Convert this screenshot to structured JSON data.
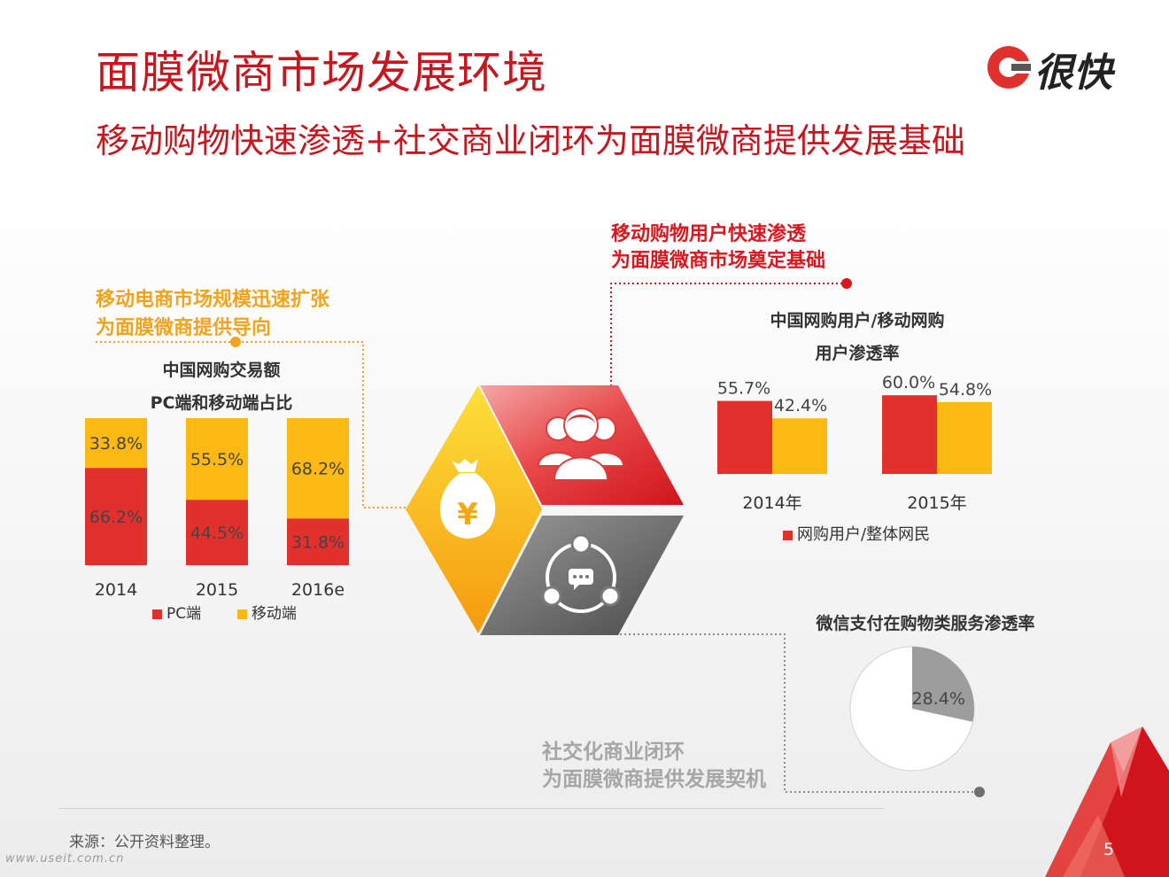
{
  "header": {
    "title": "面膜微商市场发展环境",
    "subtitle": "移动购物快速渗透+社交商业闭环为面膜微商提供发展基础",
    "logo_text": "很快"
  },
  "callouts": {
    "left": [
      "移动电商市场规模迅速扩张",
      "为面膜微商提供导向"
    ],
    "top_right": [
      "移动购物用户快速渗透",
      "为面膜微商市场奠定基础"
    ],
    "bottom": [
      "社交化商业闭环",
      "为面膜微商提供发展契机"
    ]
  },
  "icons": {
    "yellow": "money-bag-icon",
    "red": "users-icon",
    "gray": "social-chat-icon"
  },
  "colors": {
    "brand_red": "#c8161e",
    "bar_red": "#e2312d",
    "bar_yellow": "#fdb913",
    "callout_yellow": "#f3a31b",
    "pie_gray": "#9d9d9d"
  },
  "chart_data": [
    {
      "type": "bar",
      "stacked": true,
      "title": [
        "中国网购交易额",
        "PC端和移动端占比"
      ],
      "categories": [
        "2014",
        "2015",
        "2016e"
      ],
      "series": [
        {
          "name": "PC端",
          "values": [
            "66.2%",
            "44.5%",
            "31.8%"
          ],
          "numeric": [
            66.2,
            44.5,
            31.8
          ],
          "color": "#e2312d"
        },
        {
          "name": "移动端",
          "values": [
            "33.8%",
            "55.5%",
            "68.2%"
          ],
          "numeric": [
            33.8,
            55.5,
            68.2
          ],
          "color": "#fdb913"
        }
      ]
    },
    {
      "type": "bar",
      "title": [
        "中国网购用户/移动网购",
        "用户渗透率"
      ],
      "categories": [
        "2014年",
        "2015年"
      ],
      "series": [
        {
          "name": "网购用户/整体网民",
          "values": [
            "55.7%",
            "60.0%"
          ],
          "numeric": [
            55.7,
            60.0
          ],
          "color": "#e2312d"
        },
        {
          "values": [
            "42.4%",
            "54.8%"
          ],
          "numeric": [
            42.4,
            54.8
          ],
          "color": "#fdb913"
        }
      ]
    },
    {
      "type": "pie",
      "title": "微信支付在购物类服务渗透率",
      "slices": [
        {
          "label": "28.4%",
          "value": 28.4,
          "color": "#9d9d9d"
        },
        {
          "value": 71.6,
          "color": "#ffffff"
        }
      ]
    }
  ],
  "footer": {
    "source": "来源：公开资料整理。",
    "watermark": "www.useit.com.cn",
    "page_number": "5"
  }
}
